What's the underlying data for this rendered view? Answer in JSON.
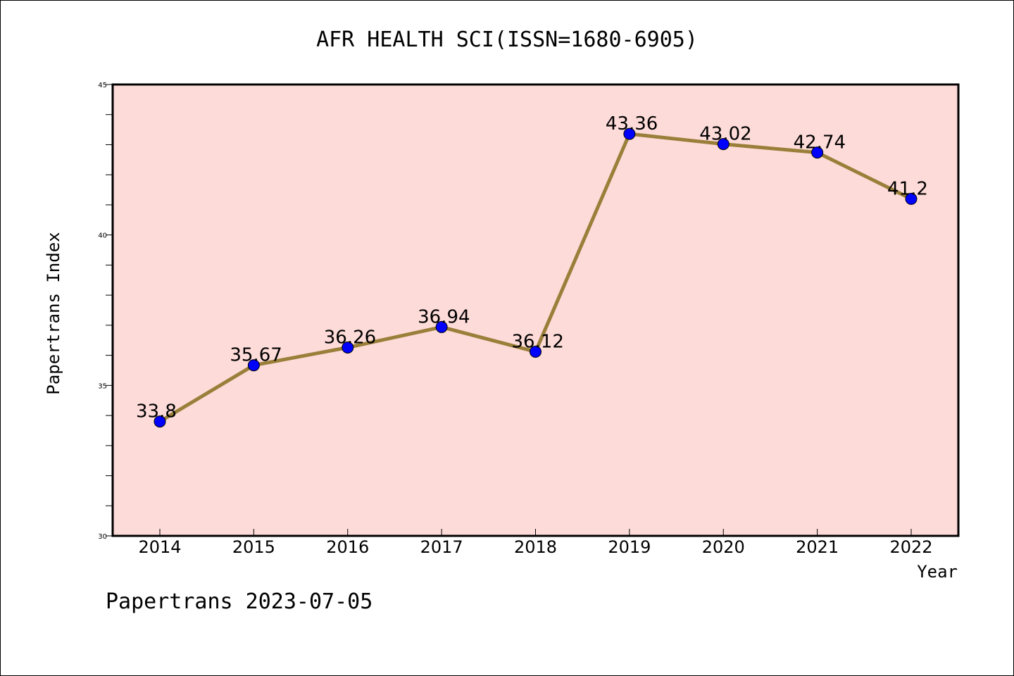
{
  "footer": "Papertrans 2023-07-05",
  "colors": {
    "plot_background": "#fddbd8",
    "line": "#9a7f3a",
    "marker": "#0000ff"
  },
  "chart_data": {
    "type": "line",
    "title": "AFR HEALTH SCI(ISSN=1680-6905)",
    "xlabel": "Year",
    "ylabel": "Papertrans Index",
    "x": [
      2014,
      2015,
      2016,
      2017,
      2018,
      2019,
      2020,
      2021,
      2022
    ],
    "values": [
      33.8,
      35.67,
      36.26,
      36.94,
      36.12,
      43.36,
      43.02,
      42.74,
      41.2
    ],
    "data_labels": [
      "33.8",
      "35.67",
      "36.26",
      "36.94",
      "36.12",
      "43.36",
      "43.02",
      "42.74",
      "41.2"
    ],
    "ylim": [
      30,
      45
    ],
    "y_major_ticks": [
      30,
      35,
      40,
      45
    ],
    "y_minor_step": 1,
    "grid": false,
    "legend": "none"
  }
}
